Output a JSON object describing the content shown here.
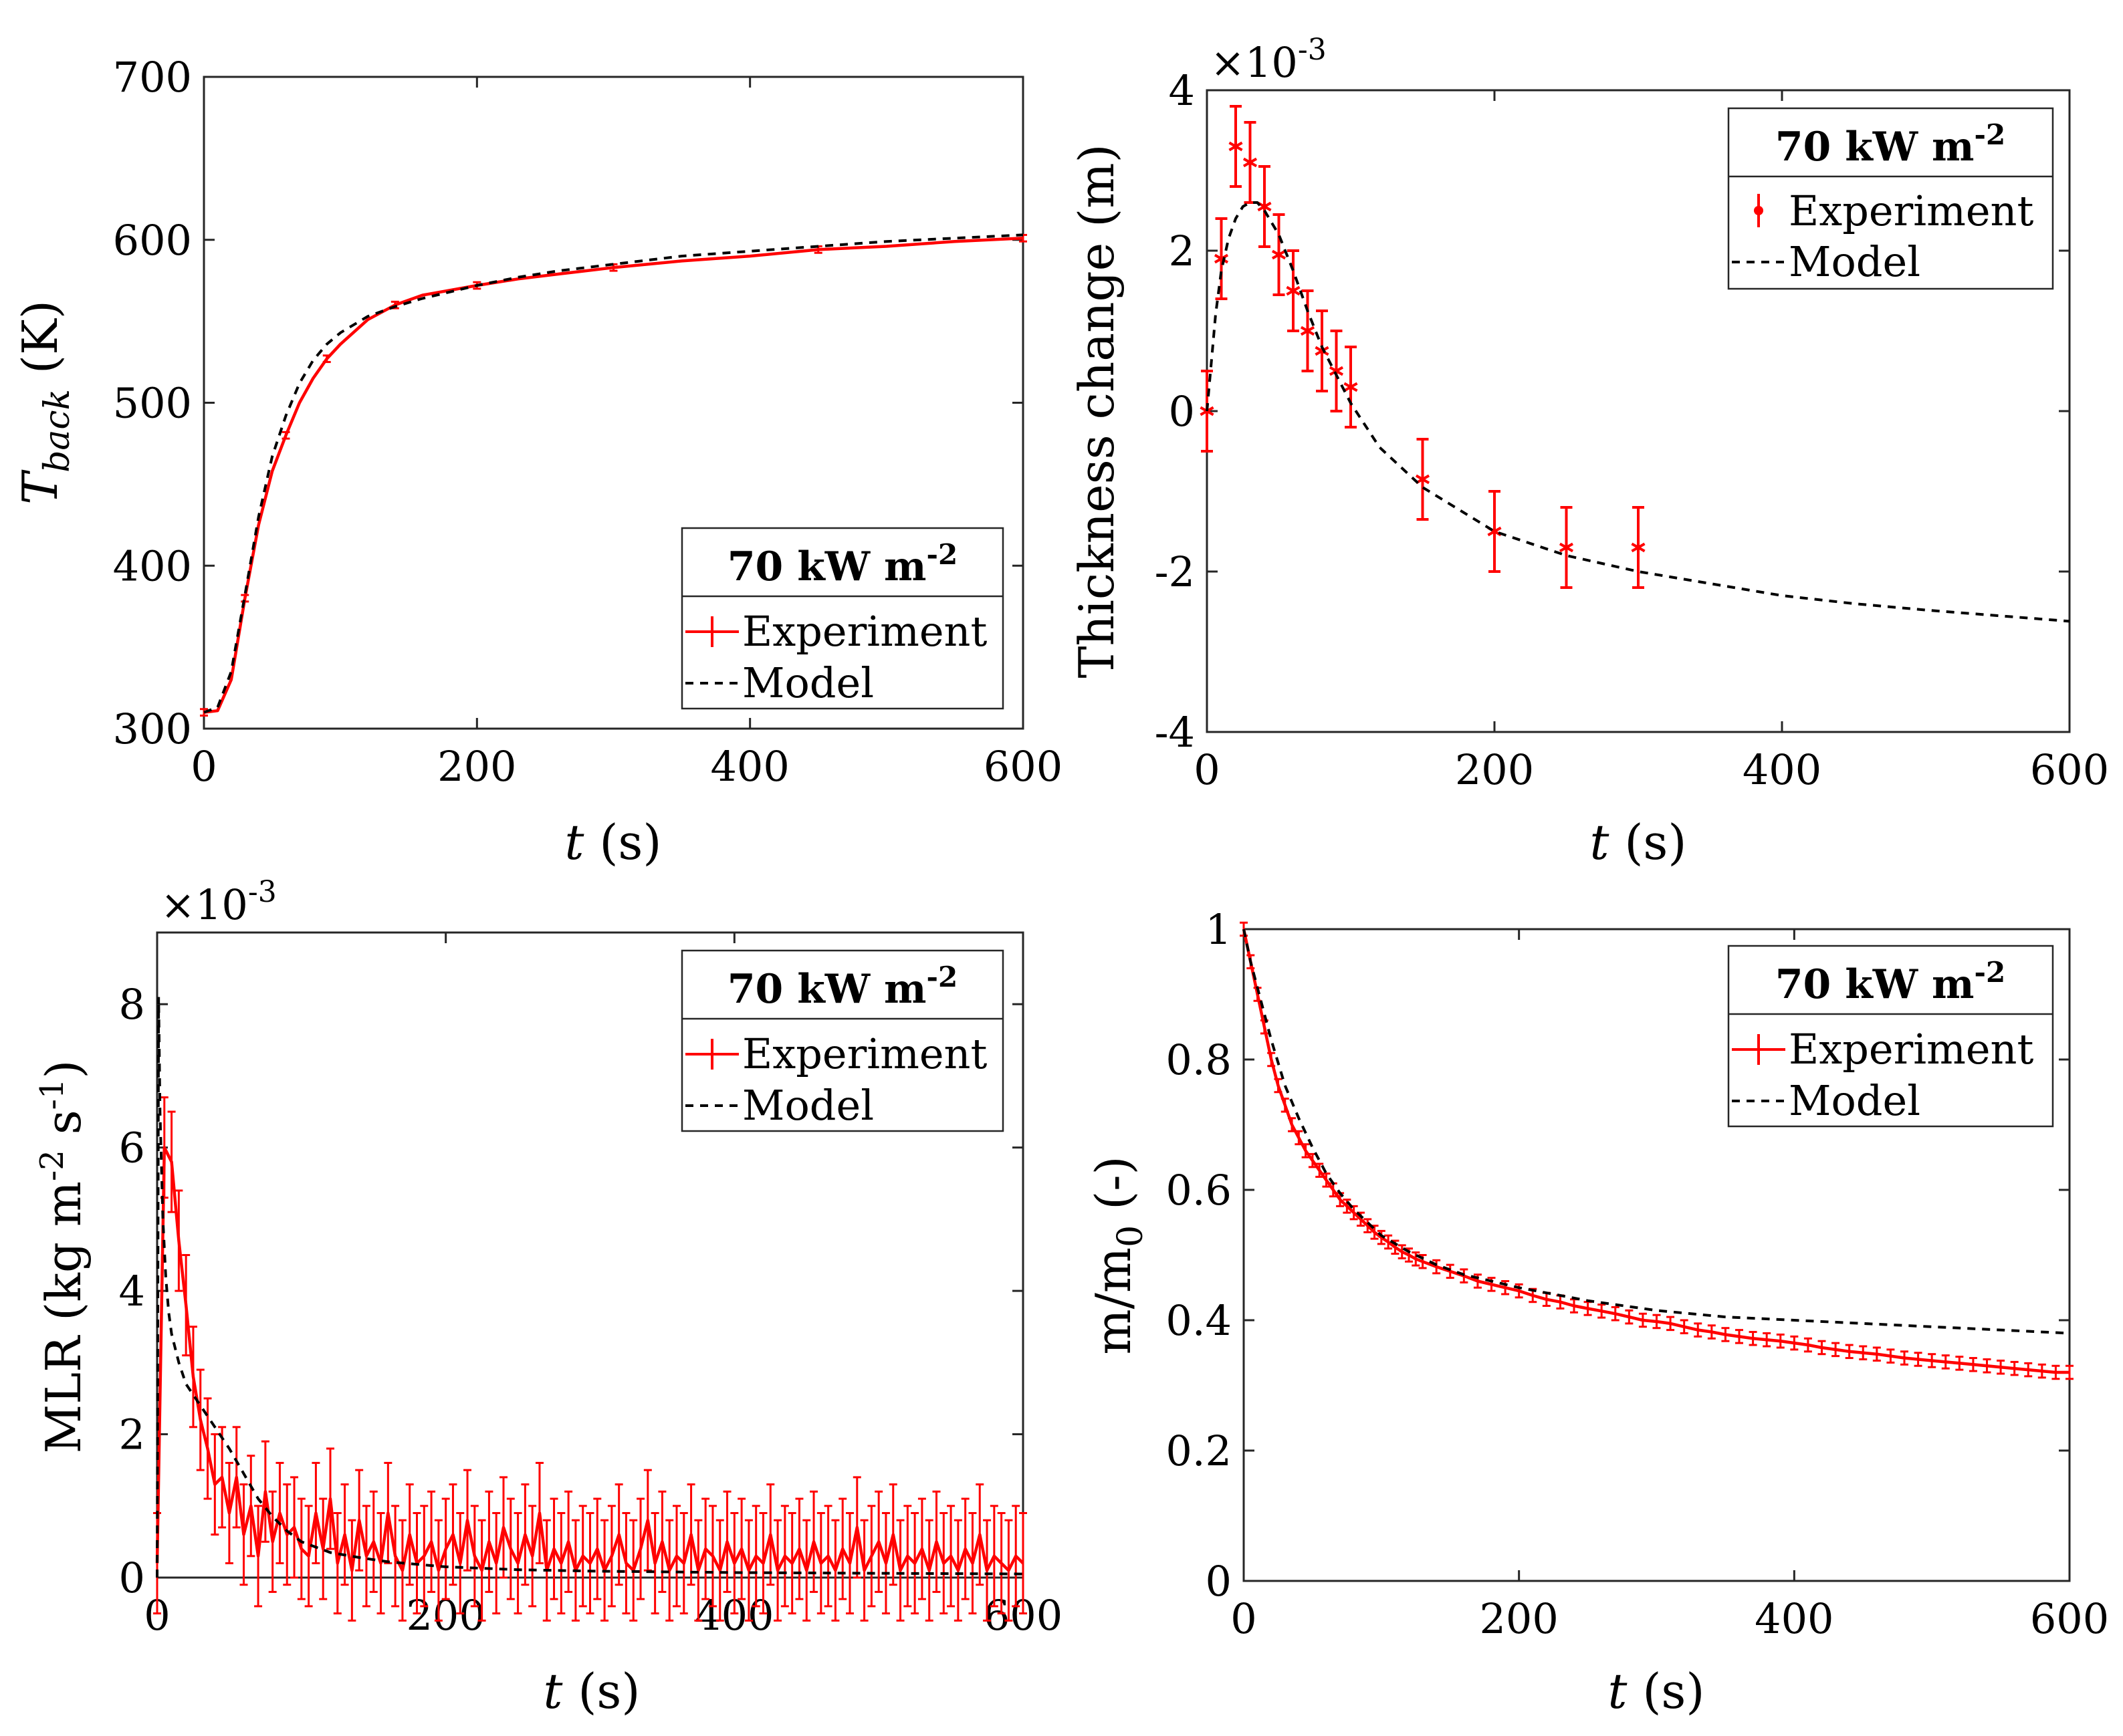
{
  "colors": {
    "experiment": "#ff0000",
    "model": "#000000",
    "axes": "#262626"
  },
  "chart_data": [
    {
      "id": "tback",
      "type": "line",
      "title": "",
      "xlabel_italic": "t",
      "xlabel_unit": "(s)",
      "ylabel_main": "T",
      "ylabel_sub": "back",
      "ylabel_unit": "(K)",
      "xlim": [
        0,
        600
      ],
      "ylim": [
        300,
        700
      ],
      "xticks": [
        0,
        200,
        400,
        600
      ],
      "yticks": [
        300,
        400,
        500,
        600,
        700
      ],
      "exponent_text": "",
      "legend": {
        "position": "bottom-right",
        "title": "70 kW m",
        "title_sup": "-2",
        "experiment": "Experiment",
        "model": "Model",
        "experiment_style": "errorbar-line"
      },
      "series": [
        {
          "name": "Experiment",
          "style": "errorbar-line",
          "errorbar_every": 3,
          "err": 2,
          "x": [
            0,
            10,
            20,
            30,
            40,
            50,
            60,
            70,
            80,
            90,
            100,
            120,
            140,
            160,
            180,
            200,
            230,
            260,
            300,
            350,
            400,
            450,
            500,
            550,
            600
          ],
          "y": [
            310,
            311,
            330,
            380,
            425,
            458,
            480,
            500,
            515,
            527,
            536,
            551,
            560,
            566,
            569,
            572,
            576,
            579,
            583,
            587,
            590,
            594,
            596,
            599,
            601
          ]
        },
        {
          "name": "Model",
          "style": "dashed",
          "x": [
            0,
            10,
            20,
            30,
            40,
            50,
            60,
            70,
            80,
            90,
            100,
            120,
            140,
            160,
            180,
            200,
            230,
            260,
            300,
            350,
            400,
            450,
            500,
            550,
            600
          ],
          "y": [
            310,
            313,
            335,
            382,
            430,
            467,
            492,
            512,
            526,
            536,
            543,
            553,
            559,
            564,
            568,
            572,
            577,
            581,
            585,
            590,
            593,
            596,
            599,
            601,
            603
          ]
        }
      ]
    },
    {
      "id": "thickness",
      "type": "line",
      "title": "",
      "xlabel_italic": "t",
      "xlabel_unit": "(s)",
      "ylabel_main": "Thickness change (m)",
      "ylabel_sub": "",
      "ylabel_unit": "",
      "xlim": [
        0,
        600
      ],
      "ylim": [
        -4,
        4
      ],
      "xticks": [
        0,
        200,
        400,
        600
      ],
      "yticks": [
        -4,
        -2,
        0,
        2,
        4
      ],
      "exponent_text": "×10",
      "exponent_sup": "-3",
      "legend": {
        "position": "top-right",
        "title": "70 kW m",
        "title_sup": "-2",
        "experiment": "Experiment",
        "model": "Model",
        "experiment_style": "errorbar-marker"
      },
      "series": [
        {
          "name": "Experiment",
          "style": "errorbar-marker",
          "x": [
            0,
            10,
            20,
            30,
            40,
            50,
            60,
            70,
            80,
            90,
            100,
            150,
            200,
            250,
            300
          ],
          "y": [
            0.0,
            1.9,
            3.3,
            3.1,
            2.55,
            1.95,
            1.5,
            1.0,
            0.75,
            0.5,
            0.3,
            -0.85,
            -1.5,
            -1.7,
            -1.7
          ],
          "err": [
            0.5,
            0.5,
            0.5,
            0.5,
            0.5,
            0.5,
            0.5,
            0.5,
            0.5,
            0.5,
            0.5,
            0.5,
            0.5,
            0.5,
            0.5
          ]
        },
        {
          "name": "Model",
          "style": "dashed",
          "x": [
            0,
            3,
            6,
            10,
            15,
            20,
            25,
            30,
            35,
            40,
            50,
            60,
            70,
            80,
            100,
            120,
            150,
            200,
            250,
            300,
            350,
            400,
            450,
            500,
            550,
            600
          ],
          "y": [
            0.0,
            0.6,
            1.2,
            1.75,
            2.15,
            2.4,
            2.55,
            2.6,
            2.6,
            2.5,
            2.2,
            1.75,
            1.25,
            0.8,
            0.1,
            -0.45,
            -0.95,
            -1.5,
            -1.8,
            -2.0,
            -2.15,
            -2.3,
            -2.4,
            -2.48,
            -2.55,
            -2.62
          ]
        }
      ]
    },
    {
      "id": "mlr",
      "type": "line",
      "title": "",
      "xlabel_italic": "t",
      "xlabel_unit": "(s)",
      "ylabel_main": "MLR (kg m",
      "ylabel_sup1": "-2",
      "ylabel_mid": " s",
      "ylabel_sup2": "-1",
      "ylabel_end": ")",
      "xlim": [
        0,
        600
      ],
      "ylim": [
        0,
        9
      ],
      "xticks": [
        0,
        200,
        400,
        600
      ],
      "yticks": [
        0,
        2,
        4,
        6,
        8
      ],
      "exponent_text": "×10",
      "exponent_sup": "-3",
      "legend": {
        "position": "top-right",
        "title": "70 kW m",
        "title_sup": "-2",
        "experiment": "Experiment",
        "model": "Model",
        "experiment_style": "errorbar-line"
      },
      "series": [
        {
          "name": "Experiment",
          "style": "errorbar-line",
          "errorbar_every": 1,
          "err": 0.7,
          "x": [
            0,
            5,
            10,
            15,
            20,
            25,
            30,
            35,
            40,
            45,
            50,
            55,
            60,
            65,
            70,
            75,
            80,
            85,
            90,
            95,
            100,
            105,
            110,
            115,
            120,
            125,
            130,
            135,
            140,
            145,
            150,
            155,
            160,
            165,
            170,
            175,
            180,
            185,
            190,
            195,
            200,
            205,
            210,
            215,
            220,
            225,
            230,
            235,
            240,
            245,
            250,
            255,
            260,
            265,
            270,
            275,
            280,
            285,
            290,
            295,
            300,
            305,
            310,
            315,
            320,
            325,
            330,
            335,
            340,
            345,
            350,
            355,
            360,
            365,
            370,
            375,
            380,
            385,
            390,
            395,
            400,
            405,
            410,
            415,
            420,
            425,
            430,
            435,
            440,
            445,
            450,
            455,
            460,
            465,
            470,
            475,
            480,
            485,
            490,
            495,
            500,
            505,
            510,
            515,
            520,
            525,
            530,
            535,
            540,
            545,
            550,
            555,
            560,
            565,
            570,
            575,
            580,
            585,
            590,
            595,
            600
          ],
          "y": [
            0.2,
            6.0,
            5.8,
            4.7,
            3.8,
            2.8,
            2.2,
            1.8,
            1.3,
            1.4,
            0.9,
            1.4,
            0.6,
            1.0,
            0.3,
            1.2,
            0.5,
            0.9,
            0.6,
            0.7,
            0.4,
            0.3,
            0.9,
            0.4,
            1.1,
            0.2,
            0.6,
            0.1,
            0.8,
            0.3,
            0.5,
            0.2,
            0.9,
            0.3,
            0.1,
            0.6,
            0.2,
            0.3,
            0.5,
            0.1,
            0.4,
            0.6,
            0.2,
            0.8,
            0.3,
            0.1,
            0.5,
            0.2,
            0.7,
            0.4,
            0.2,
            0.6,
            0.3,
            0.9,
            0.1,
            0.4,
            0.2,
            0.5,
            0.1,
            0.3,
            0.2,
            0.4,
            0.1,
            0.3,
            0.6,
            0.2,
            0.1,
            0.4,
            0.8,
            0.2,
            0.5,
            0.1,
            0.3,
            0.2,
            0.6,
            0.1,
            0.4,
            0.3,
            0.1,
            0.5,
            0.2,
            0.4,
            0.1,
            0.3,
            0.2,
            0.6,
            0.1,
            0.3,
            0.2,
            0.4,
            0.1,
            0.5,
            0.2,
            0.3,
            0.1,
            0.4,
            0.2,
            0.7,
            0.1,
            0.3,
            0.5,
            0.2,
            0.6,
            0.1,
            0.3,
            0.2,
            0.4,
            0.1,
            0.5,
            0.2,
            0.3,
            0.1,
            0.4,
            0.2,
            0.6,
            0.1,
            0.3,
            0.2,
            0.1,
            0.3,
            0.2
          ]
        },
        {
          "name": "Model",
          "style": "dashed",
          "x": [
            0,
            1,
            2,
            4,
            6,
            8,
            10,
            15,
            20,
            25,
            30,
            40,
            50,
            60,
            70,
            80,
            90,
            100,
            120,
            140,
            160,
            200,
            250,
            300,
            400,
            500,
            600
          ],
          "y": [
            0.0,
            8.1,
            6.5,
            5.0,
            4.2,
            3.7,
            3.4,
            3.0,
            2.7,
            2.55,
            2.4,
            2.1,
            1.8,
            1.45,
            1.1,
            0.85,
            0.65,
            0.5,
            0.35,
            0.28,
            0.22,
            0.15,
            0.11,
            0.09,
            0.07,
            0.06,
            0.05
          ]
        }
      ]
    },
    {
      "id": "mass",
      "type": "line",
      "title": "",
      "xlabel_italic": "t",
      "xlabel_unit": "(s)",
      "ylabel_main": "m/m",
      "ylabel_sub": "0",
      "ylabel_unit": "(-)",
      "xlim": [
        0,
        600
      ],
      "ylim": [
        0,
        1
      ],
      "xticks": [
        0,
        200,
        400,
        600
      ],
      "yticks": [
        0,
        0.2,
        0.4,
        0.6,
        0.8,
        1
      ],
      "exponent_text": "",
      "legend": {
        "position": "top-right",
        "title": "70 kW m",
        "title_sup": "-2",
        "experiment": "Experiment",
        "model": "Model",
        "experiment_style": "errorbar-line"
      },
      "series": [
        {
          "name": "Experiment",
          "style": "errorbar-line",
          "errorbar_every": 1,
          "err": 0.01,
          "x": [
            0,
            5,
            10,
            15,
            20,
            25,
            30,
            35,
            40,
            45,
            50,
            55,
            60,
            65,
            70,
            75,
            80,
            85,
            90,
            95,
            100,
            105,
            110,
            115,
            120,
            125,
            130,
            140,
            150,
            160,
            170,
            180,
            190,
            200,
            210,
            220,
            230,
            240,
            250,
            260,
            270,
            280,
            290,
            300,
            310,
            320,
            330,
            340,
            350,
            360,
            370,
            380,
            390,
            400,
            410,
            420,
            430,
            440,
            450,
            460,
            470,
            480,
            490,
            500,
            510,
            520,
            530,
            540,
            550,
            560,
            570,
            580,
            590,
            600
          ],
          "y": [
            1.0,
            0.95,
            0.9,
            0.85,
            0.8,
            0.76,
            0.73,
            0.7,
            0.68,
            0.66,
            0.645,
            0.63,
            0.615,
            0.6,
            0.585,
            0.575,
            0.565,
            0.555,
            0.545,
            0.535,
            0.527,
            0.52,
            0.512,
            0.505,
            0.5,
            0.494,
            0.49,
            0.482,
            0.475,
            0.468,
            0.46,
            0.455,
            0.45,
            0.445,
            0.438,
            0.432,
            0.428,
            0.422,
            0.418,
            0.414,
            0.41,
            0.405,
            0.4,
            0.398,
            0.395,
            0.39,
            0.385,
            0.382,
            0.378,
            0.375,
            0.372,
            0.37,
            0.368,
            0.365,
            0.362,
            0.358,
            0.355,
            0.352,
            0.35,
            0.348,
            0.345,
            0.342,
            0.34,
            0.338,
            0.336,
            0.334,
            0.332,
            0.33,
            0.328,
            0.326,
            0.324,
            0.322,
            0.32,
            0.32
          ]
        },
        {
          "name": "Model",
          "style": "dashed",
          "x": [
            0,
            5,
            10,
            20,
            30,
            40,
            50,
            60,
            70,
            80,
            90,
            100,
            120,
            140,
            160,
            180,
            200,
            250,
            300,
            350,
            400,
            450,
            500,
            550,
            600
          ],
          "y": [
            1.0,
            0.95,
            0.91,
            0.83,
            0.76,
            0.71,
            0.665,
            0.625,
            0.595,
            0.57,
            0.55,
            0.53,
            0.505,
            0.485,
            0.47,
            0.46,
            0.45,
            0.43,
            0.415,
            0.405,
            0.4,
            0.395,
            0.39,
            0.385,
            0.38
          ]
        }
      ]
    }
  ]
}
